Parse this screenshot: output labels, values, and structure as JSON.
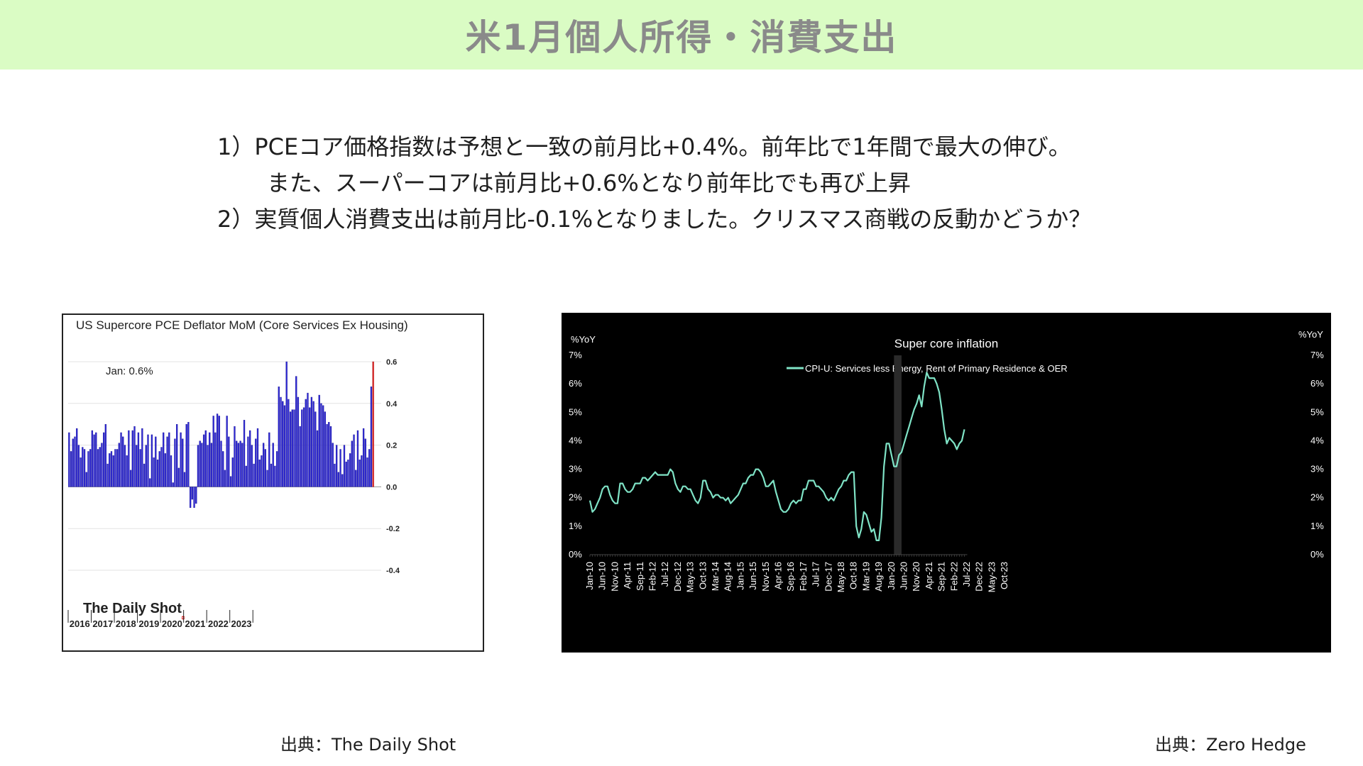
{
  "slide": {
    "title": "米1月個人所得・消費支出",
    "bullets": [
      "1）PCEコア価格指数は予想と一致の前月比+0.4%。前年比で1年間で最大の伸び。",
      "また、スーパーコアは前月比+0.6%となり前年比でも再び上昇",
      "2）実質個人消費支出は前月比-0.1%となりました。クリスマス商戦の反動かどうか？"
    ],
    "source_left": "出典：The Daily Shot",
    "source_right": "出典：Zero Hedge"
  },
  "chart_data": [
    {
      "type": "bar",
      "title": "US Supercore PCE Deflator MoM (Core Services Ex Housing)",
      "annotation": "Jan:   0.6%",
      "logo": "The Daily Shot",
      "year_labels": [
        "2016",
        "2017",
        "2018",
        "2019",
        "2020",
        "2021",
        "2022",
        "2023"
      ],
      "ytick_labels": [
        "0.6",
        "0.4",
        "0.2",
        "0.0",
        "-0.2",
        "-0.4"
      ],
      "yticks": [
        0.6,
        0.4,
        0.2,
        0.0,
        -0.2,
        -0.4
      ],
      "ylim": [
        -0.4,
        0.6
      ],
      "x_start": "2016-01",
      "values": [
        0.26,
        0.17,
        0.23,
        0.24,
        0.28,
        0.2,
        0.14,
        0.19,
        0.18,
        0.07,
        0.17,
        0.18,
        0.27,
        0.25,
        0.26,
        0.18,
        0.19,
        0.21,
        0.26,
        0.3,
        0.11,
        0.16,
        0.17,
        0.15,
        0.18,
        0.18,
        0.21,
        0.26,
        0.24,
        0.2,
        0.15,
        0.27,
        0.08,
        0.27,
        0.29,
        0.2,
        0.26,
        0.18,
        0.28,
        0.11,
        0.2,
        0.25,
        0.04,
        0.25,
        0.14,
        0.24,
        0.13,
        0.17,
        0.19,
        0.26,
        0.16,
        0.24,
        0.26,
        0.15,
        0.02,
        0.23,
        0.3,
        0.09,
        0.26,
        0.23,
        0.07,
        0.3,
        0.31,
        -0.1,
        -0.06,
        -0.1,
        -0.08,
        0.2,
        0.22,
        0.21,
        0.25,
        0.27,
        0.2,
        0.26,
        0.21,
        0.34,
        0.26,
        0.35,
        0.34,
        0.22,
        0.17,
        0.08,
        0.34,
        0.24,
        0.05,
        0.14,
        0.29,
        0.22,
        0.21,
        0.22,
        0.21,
        0.32,
        0.1,
        0.24,
        0.27,
        0.2,
        0.11,
        0.23,
        0.28,
        0.13,
        0.15,
        0.21,
        0.18,
        0.08,
        0.26,
        0.11,
        0.21,
        0.1,
        0.17,
        0.48,
        0.43,
        0.41,
        0.39,
        0.6,
        0.42,
        0.36,
        0.37,
        0.37,
        0.53,
        0.43,
        0.29,
        0.37,
        0.38,
        0.42,
        0.45,
        0.38,
        0.43,
        0.41,
        0.36,
        0.27,
        0.44,
        0.4,
        0.39,
        0.36,
        0.3,
        0.31,
        0.29,
        0.21,
        0.11,
        0.2,
        0.07,
        0.18,
        0.06,
        0.2,
        0.12,
        0.13,
        0.16,
        0.22,
        0.25,
        0.08,
        0.27,
        0.13,
        0.15,
        0.28,
        0.23,
        0.14,
        0.18,
        0.48,
        0.6
      ],
      "highlight_last": true,
      "colors": {
        "bar": "#2e28d8",
        "last_bar": "#e02828"
      }
    },
    {
      "type": "line",
      "title": "Super core inflation",
      "legend": "CPI-U: Services less Energy, Rent of Primary Residence & OER",
      "y_unit_left": "%YoY",
      "y_unit_right": "%YoY",
      "ytick_labels": [
        "7%",
        "6%",
        "5%",
        "4%",
        "3%",
        "2%",
        "1%",
        "0%"
      ],
      "ylim": [
        0,
        7
      ],
      "xtick_labels": [
        "Jan-10",
        "Jun-10",
        "Nov-10",
        "Apr-11",
        "Sep-11",
        "Feb-12",
        "Jul-12",
        "Dec-12",
        "May-13",
        "Oct-13",
        "Mar-14",
        "Aug-14",
        "Jan-15",
        "Jun-15",
        "Nov-15",
        "Apr-16",
        "Sep-16",
        "Feb-17",
        "Jul-17",
        "Dec-17",
        "May-18",
        "Oct-18",
        "Mar-19",
        "Aug-19",
        "Jan-20",
        "Jun-20",
        "Nov-20",
        "Apr-21",
        "Sep-21",
        "Feb-22",
        "Jul-22",
        "Dec-22",
        "May-23",
        "Oct-23"
      ],
      "shaded_period": [
        "Feb-20",
        "Apr-20"
      ],
      "values": [
        1.9,
        1.5,
        1.6,
        1.8,
        2.0,
        2.3,
        2.4,
        2.4,
        2.1,
        1.9,
        1.8,
        1.8,
        2.5,
        2.5,
        2.3,
        2.2,
        2.2,
        2.3,
        2.5,
        2.5,
        2.5,
        2.7,
        2.7,
        2.6,
        2.7,
        2.8,
        2.9,
        2.8,
        2.8,
        2.8,
        2.8,
        2.8,
        3.0,
        2.9,
        2.5,
        2.3,
        2.2,
        2.4,
        2.4,
        2.3,
        2.3,
        2.1,
        1.9,
        1.8,
        2.0,
        2.6,
        2.6,
        2.3,
        2.2,
        2.0,
        2.1,
        2.1,
        2.0,
        2.0,
        1.9,
        2.0,
        1.8,
        1.9,
        2.0,
        2.1,
        2.3,
        2.5,
        2.5,
        2.7,
        2.8,
        2.8,
        3.0,
        3.0,
        2.9,
        2.7,
        2.4,
        2.4,
        2.5,
        2.6,
        2.2,
        1.9,
        1.6,
        1.5,
        1.5,
        1.6,
        1.8,
        1.9,
        1.8,
        1.9,
        1.9,
        2.3,
        2.3,
        2.6,
        2.6,
        2.6,
        2.4,
        2.4,
        2.3,
        2.2,
        2.0,
        1.9,
        2.0,
        1.9,
        2.1,
        2.3,
        2.4,
        2.6,
        2.6,
        2.8,
        2.9,
        2.9,
        1.0,
        0.6,
        0.9,
        1.5,
        1.4,
        1.1,
        0.8,
        0.9,
        0.5,
        0.5,
        1.3,
        3.1,
        3.9,
        3.9,
        3.5,
        3.1,
        3.1,
        3.5,
        3.6,
        3.9,
        4.2,
        4.5,
        4.8,
        5.1,
        5.3,
        5.6,
        5.2,
        5.9,
        6.4,
        6.2,
        6.2,
        6.2,
        6.0,
        5.7,
        5.1,
        4.4,
        3.9,
        4.1,
        4.0,
        3.9,
        3.7,
        3.9,
        4.0,
        4.4
      ],
      "colors": {
        "line": "#7fe3c6",
        "background": "#000000",
        "shade": "#2a2a2a",
        "text": "#ffffff"
      }
    }
  ]
}
